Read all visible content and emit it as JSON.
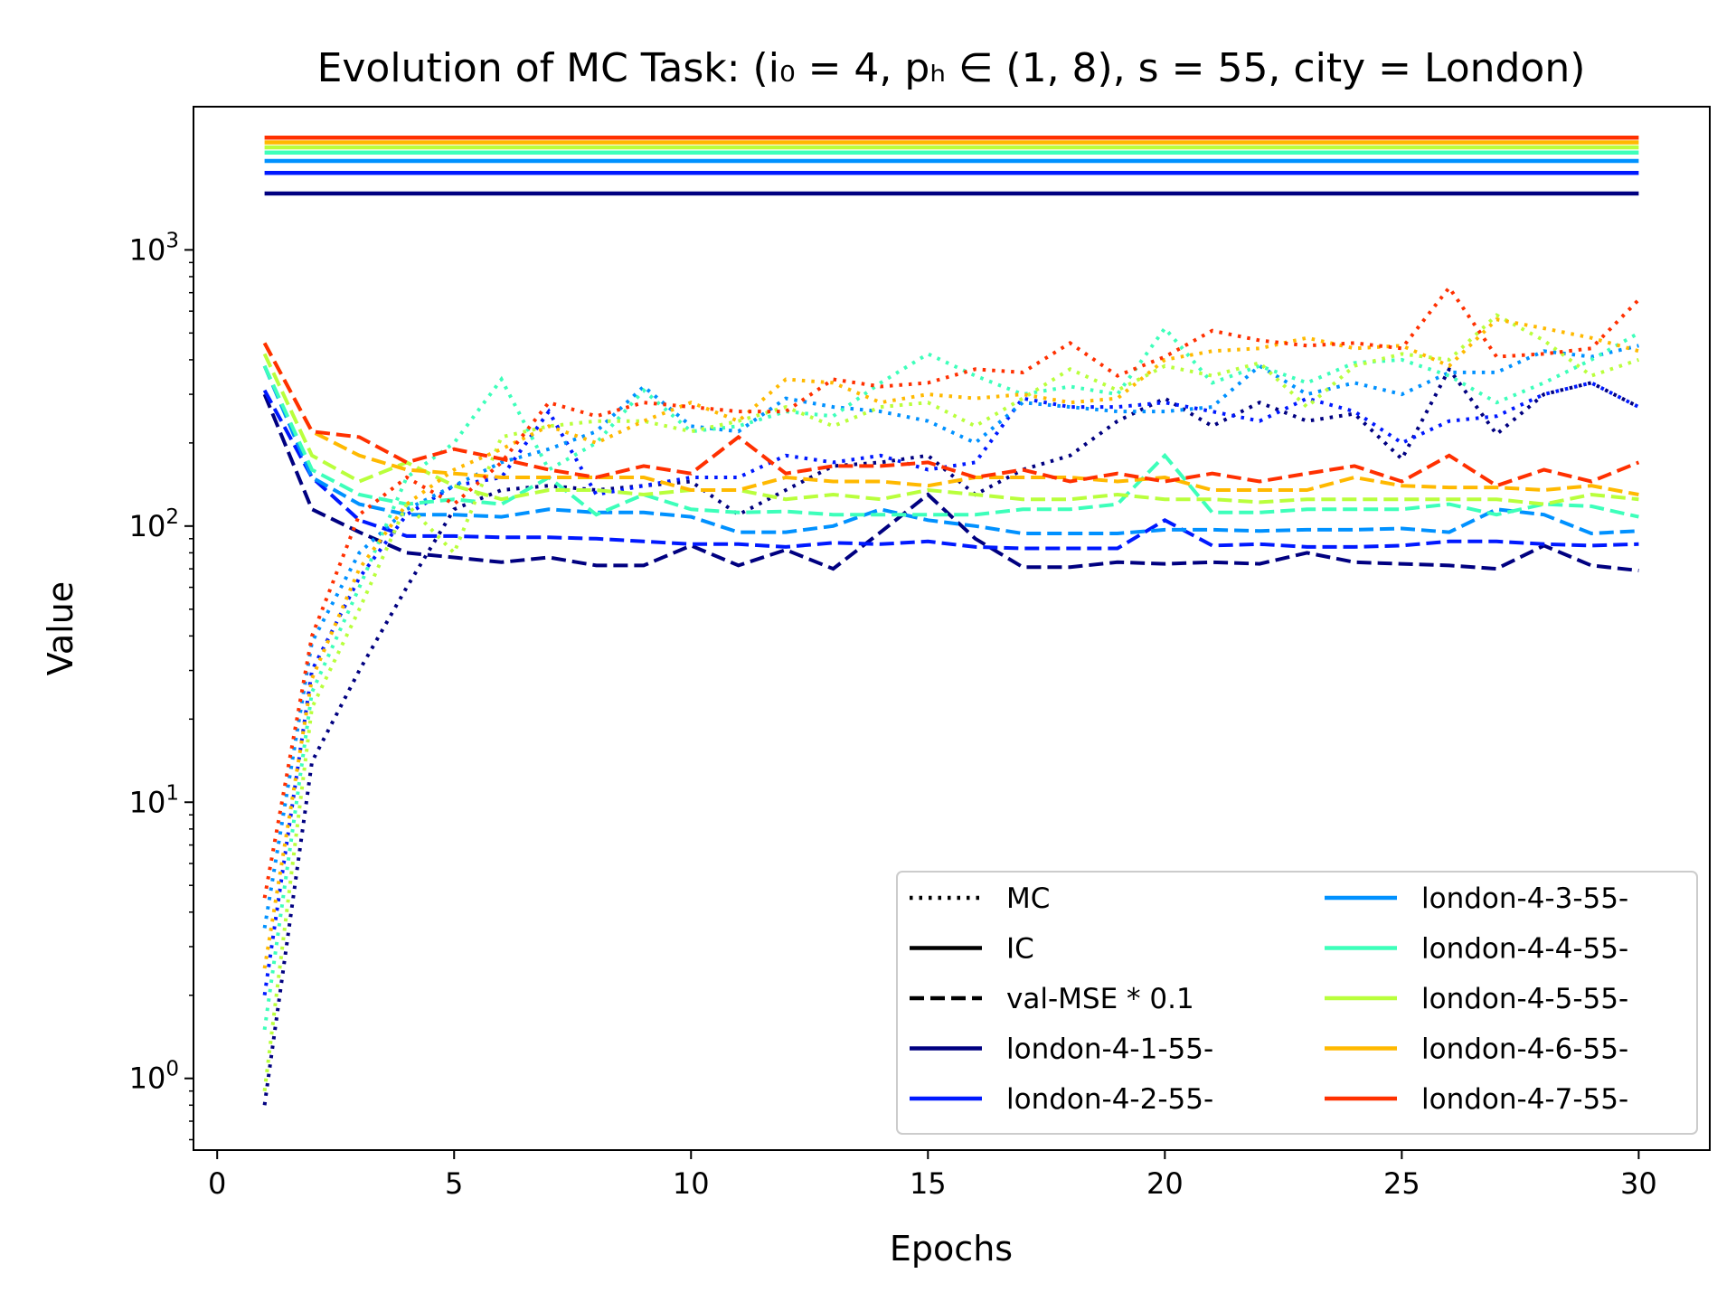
{
  "chart_data": {
    "type": "line",
    "title": "Evolution of MC Task: (i₀ = 4, pₕ ∈ (1, 8), s = 55, city = London)",
    "xlabel": "Epochs",
    "ylabel": "Value",
    "xlim": [
      -0.5,
      31.5
    ],
    "ylim": [
      0.55,
      3300
    ],
    "yscale": "log",
    "grid": false,
    "legend_placement": "lower-right",
    "x_ticks": [
      0,
      5,
      10,
      15,
      20,
      25,
      30
    ],
    "y_ticks": [
      {
        "value": 1,
        "base": "10",
        "exp": "0"
      },
      {
        "value": 10,
        "base": "10",
        "exp": "1"
      },
      {
        "value": 100,
        "base": "10",
        "exp": "2"
      },
      {
        "value": 1000,
        "base": "10",
        "exp": "3"
      }
    ],
    "style_legend": [
      {
        "label": "MC",
        "dash": "dotted"
      },
      {
        "label": "IC",
        "dash": "solid"
      },
      {
        "label": "val-MSE * 0.1",
        "dash": "dashed"
      }
    ],
    "x": [
      1,
      2,
      3,
      4,
      5,
      6,
      7,
      8,
      9,
      10,
      11,
      12,
      13,
      14,
      15,
      16,
      17,
      18,
      19,
      20,
      21,
      22,
      23,
      24,
      25,
      26,
      27,
      28,
      29,
      30
    ],
    "series": [
      {
        "name": "london-4-1-55-",
        "color": "#000080",
        "ic": 1600,
        "mc": [
          0.8,
          14,
          30,
          60,
          115,
          135,
          140,
          135,
          140,
          145,
          110,
          135,
          165,
          170,
          180,
          130,
          160,
          180,
          240,
          290,
          230,
          280,
          240,
          255,
          175,
          370,
          215,
          300,
          330,
          270
        ],
        "val": [
          300,
          115,
          95,
          80,
          77,
          74,
          77,
          72,
          72,
          85,
          72,
          82,
          70,
          95,
          130,
          90,
          71,
          71,
          74,
          73,
          74,
          73,
          80,
          74,
          73,
          72,
          70,
          85,
          72,
          69
        ]
      },
      {
        "name": "london-4-2-55-",
        "color": "#0019ff",
        "ic": 1900,
        "mc": [
          2,
          30,
          65,
          110,
          140,
          150,
          260,
          130,
          140,
          150,
          150,
          180,
          170,
          180,
          160,
          170,
          290,
          270,
          270,
          280,
          260,
          240,
          290,
          260,
          200,
          240,
          250,
          300,
          330,
          270
        ],
        "val": [
          310,
          150,
          105,
          92,
          92,
          91,
          91,
          90,
          88,
          86,
          86,
          84,
          87,
          86,
          88,
          84,
          83,
          83,
          83,
          105,
          85,
          86,
          84,
          84,
          85,
          88,
          88,
          86,
          85,
          86
        ]
      },
      {
        "name": "london-4-3-55-",
        "color": "#0091ff",
        "ic": 2100,
        "mc": [
          3.5,
          38,
          80,
          115,
          140,
          170,
          190,
          220,
          320,
          230,
          220,
          290,
          270,
          260,
          240,
          200,
          280,
          270,
          260,
          260,
          270,
          380,
          300,
          330,
          300,
          360,
          360,
          430,
          410,
          450
        ],
        "val": [
          380,
          150,
          120,
          110,
          110,
          108,
          115,
          112,
          112,
          108,
          95,
          95,
          100,
          115,
          105,
          100,
          94,
          94,
          94,
          97,
          97,
          96,
          97,
          97,
          98,
          95,
          115,
          110,
          94,
          96
        ]
      },
      {
        "name": "london-4-4-55-",
        "color": "#3dffba",
        "ic": 2250,
        "mc": [
          1.5,
          25,
          60,
          150,
          200,
          340,
          160,
          200,
          310,
          220,
          230,
          260,
          250,
          330,
          420,
          350,
          300,
          320,
          300,
          520,
          330,
          380,
          330,
          390,
          400,
          350,
          280,
          330,
          400,
          500
        ],
        "val": [
          380,
          160,
          130,
          120,
          125,
          120,
          150,
          110,
          130,
          115,
          112,
          113,
          110,
          110,
          110,
          110,
          115,
          115,
          120,
          180,
          112,
          112,
          115,
          115,
          115,
          120,
          110,
          120,
          118,
          108
        ]
      },
      {
        "name": "london-4-5-55-",
        "color": "#b9ff3c",
        "ic": 2350,
        "mc": [
          0.9,
          22,
          50,
          120,
          80,
          210,
          230,
          240,
          240,
          220,
          240,
          270,
          230,
          270,
          280,
          230,
          290,
          370,
          310,
          380,
          350,
          390,
          270,
          380,
          420,
          400,
          580,
          470,
          350,
          400
        ],
        "val": [
          420,
          180,
          145,
          170,
          140,
          125,
          135,
          135,
          130,
          135,
          135,
          125,
          130,
          125,
          135,
          130,
          125,
          125,
          130,
          125,
          125,
          122,
          125,
          125,
          125,
          125,
          125,
          120,
          130,
          125
        ]
      },
      {
        "name": "london-4-6-55-",
        "color": "#ffb900",
        "ic": 2450,
        "mc": [
          2.5,
          28,
          70,
          120,
          160,
          190,
          230,
          200,
          240,
          280,
          240,
          340,
          330,
          280,
          300,
          290,
          300,
          280,
          290,
          400,
          430,
          440,
          480,
          440,
          450,
          380,
          560,
          520,
          480,
          430
        ],
        "val": [
          460,
          220,
          180,
          160,
          155,
          150,
          150,
          150,
          150,
          135,
          135,
          150,
          145,
          145,
          140,
          150,
          150,
          150,
          145,
          150,
          135,
          135,
          135,
          150,
          140,
          138,
          138,
          135,
          140,
          130
        ]
      },
      {
        "name": "london-4-7-55-",
        "color": "#ff3000",
        "ic": 2550,
        "mc": [
          4.5,
          40,
          110,
          150,
          120,
          170,
          280,
          250,
          280,
          270,
          260,
          260,
          340,
          320,
          330,
          370,
          360,
          460,
          350,
          410,
          510,
          470,
          450,
          460,
          440,
          730,
          410,
          420,
          440,
          660
        ],
        "val": [
          460,
          220,
          210,
          170,
          190,
          175,
          160,
          150,
          165,
          155,
          210,
          155,
          165,
          165,
          170,
          150,
          160,
          145,
          155,
          145,
          155,
          145,
          155,
          165,
          145,
          180,
          140,
          160,
          145,
          170
        ]
      }
    ]
  }
}
